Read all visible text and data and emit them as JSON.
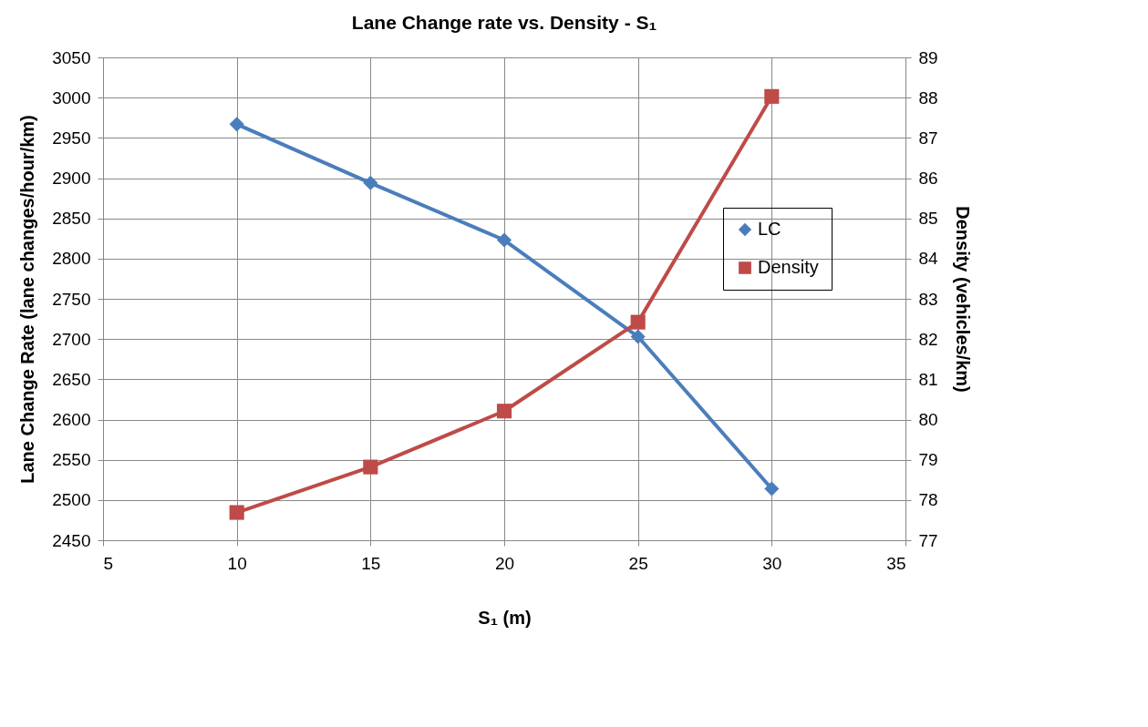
{
  "chart_data": {
    "type": "line",
    "title": "Lane Change rate vs. Density - S₁",
    "xlabel": "S₁ (m)",
    "ylabel": "Lane Change Rate (lane changes/hour/km)",
    "y2label": "Density (vehicles/km)",
    "x": [
      10,
      15,
      20,
      25,
      30
    ],
    "series": [
      {
        "name": "LC",
        "color": "#4a7ebb",
        "marker": "diamond",
        "values": [
          2967,
          2894,
          2823,
          2703,
          2514
        ]
      },
      {
        "name": "Density",
        "color": "#be4b48",
        "marker": "square",
        "axis": "y2",
        "values": [
          77.69,
          78.82,
          80.21,
          82.42,
          88.03
        ]
      }
    ],
    "xlim": [
      5,
      35
    ],
    "xticks": [
      5,
      10,
      15,
      20,
      25,
      30,
      35
    ],
    "ylim": [
      2450,
      3050
    ],
    "yticks": [
      2450,
      2500,
      2550,
      2600,
      2650,
      2700,
      2750,
      2800,
      2850,
      2900,
      2950,
      3000,
      3050
    ],
    "y2lim": [
      77,
      89
    ],
    "y2ticks": [
      77,
      78,
      79,
      80,
      81,
      82,
      83,
      84,
      85,
      86,
      87,
      88,
      89
    ],
    "grid": true,
    "legend": "right",
    "line_style": "solid"
  }
}
